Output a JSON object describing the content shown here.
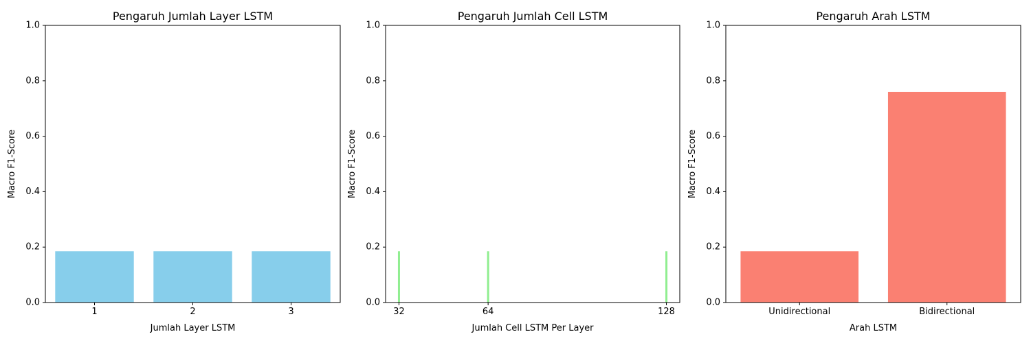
{
  "chart_data": [
    {
      "type": "bar",
      "title": "Pengaruh Jumlah Layer LSTM",
      "xlabel": "Jumlah Layer LSTM",
      "ylabel": "Macro F1-Score",
      "x_type": "categorical",
      "categories": [
        "1",
        "2",
        "3"
      ],
      "values": [
        0.185,
        0.185,
        0.185
      ],
      "ylim": [
        0,
        1.0
      ],
      "yticks": [
        "0.0",
        "0.2",
        "0.4",
        "0.6",
        "0.8",
        "1.0"
      ],
      "color": "#87ceeb",
      "grid": false
    },
    {
      "type": "bar",
      "title": "Pengaruh Jumlah Cell LSTM",
      "xlabel": "Jumlah Cell LSTM Per Layer",
      "ylabel": "Macro F1-Score",
      "x_type": "numeric",
      "x": [
        32,
        64,
        128
      ],
      "xticks": [
        "32",
        "64",
        "128"
      ],
      "values": [
        0.185,
        0.185,
        0.185
      ],
      "xlim": [
        27.2,
        132.8
      ],
      "ylim": [
        0,
        1.0
      ],
      "yticks": [
        "0.0",
        "0.2",
        "0.4",
        "0.6",
        "0.8",
        "1.0"
      ],
      "color": "#90ee90",
      "grid": false
    },
    {
      "type": "bar",
      "title": "Pengaruh Arah LSTM",
      "xlabel": "Arah LSTM",
      "ylabel": "Macro F1-Score",
      "x_type": "categorical",
      "categories": [
        "Unidirectional",
        "Bidirectional"
      ],
      "values": [
        0.185,
        0.76
      ],
      "ylim": [
        0,
        1.0
      ],
      "yticks": [
        "0.0",
        "0.2",
        "0.4",
        "0.6",
        "0.8",
        "1.0"
      ],
      "color": "#fa8072",
      "grid": false
    }
  ]
}
